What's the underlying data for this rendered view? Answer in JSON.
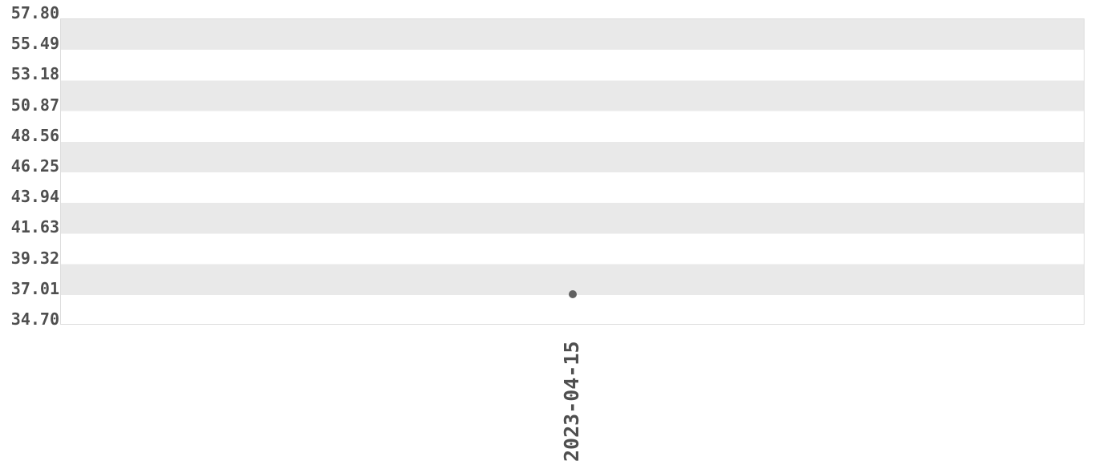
{
  "chart_data": {
    "type": "scatter",
    "title": "",
    "xlabel": "",
    "ylabel": "",
    "x": [
      "2023-04-15"
    ],
    "y": [
      37.0
    ],
    "xtick_labels": [
      "2023-04-15"
    ],
    "xtick_rotation_deg": 90,
    "ytick_labels": [
      "57.80",
      "55.49",
      "53.18",
      "50.87",
      "48.56",
      "46.25",
      "43.94",
      "41.63",
      "39.32",
      "37.01",
      "34.70"
    ],
    "ytick_values": [
      57.8,
      55.49,
      53.18,
      50.87,
      48.56,
      46.25,
      43.94,
      41.63,
      39.32,
      37.01,
      34.7
    ],
    "ytick_step": 2.31,
    "ylim": [
      34.7,
      57.8
    ],
    "legend_position": "none",
    "grid": "horizontal_stripes_alternating",
    "marker": "circle",
    "colors": {
      "background": "#ffffff",
      "stripe": "#e9e9e9",
      "tick_text": "#4f4f4f",
      "point": "#616161",
      "spine": "#dcdcdc"
    }
  }
}
